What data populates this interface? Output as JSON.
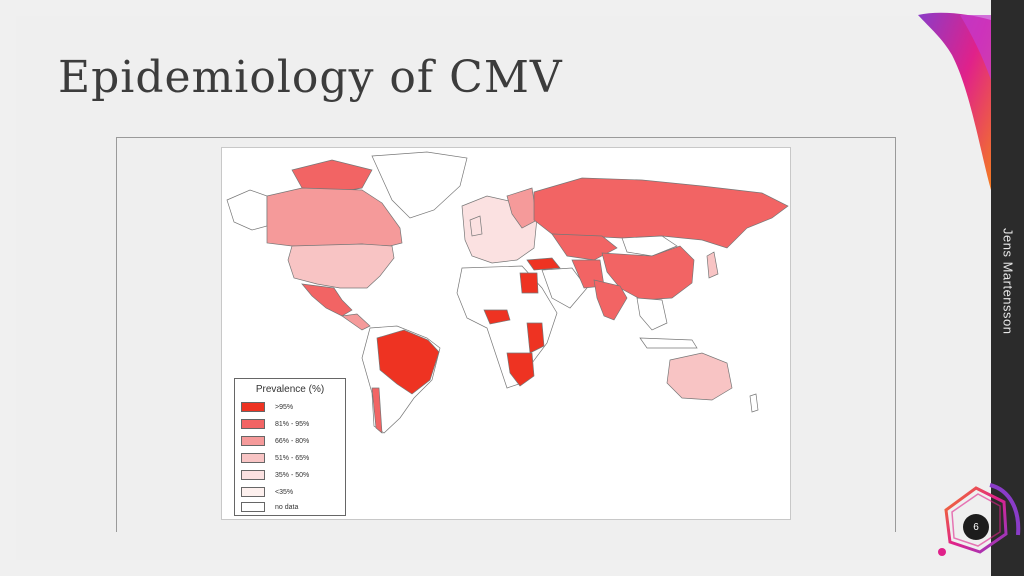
{
  "slide": {
    "title": "Epidemiology of CMV",
    "author": "Jens Martensson",
    "page_number": "6"
  },
  "legend": {
    "title": "Prevalence (%)",
    "items": [
      {
        "label": ">95%",
        "color": "#ee3322"
      },
      {
        "label": "81% - 95%",
        "color": "#f26464"
      },
      {
        "label": "66% - 80%",
        "color": "#f59a9a"
      },
      {
        "label": "51% - 65%",
        "color": "#f8c4c4"
      },
      {
        "label": "35% - 50%",
        "color": "#fbe1e1"
      },
      {
        "label": "<35%",
        "color": "#fdf0ee"
      },
      {
        "label": "no data",
        "color": "#ffffff"
      }
    ]
  },
  "colors": {
    "accent_magenta": "#e0218a",
    "accent_purple": "#8a3cc8",
    "accent_orange": "#f47b20",
    "sidebar_dark": "#2b2b2b"
  }
}
